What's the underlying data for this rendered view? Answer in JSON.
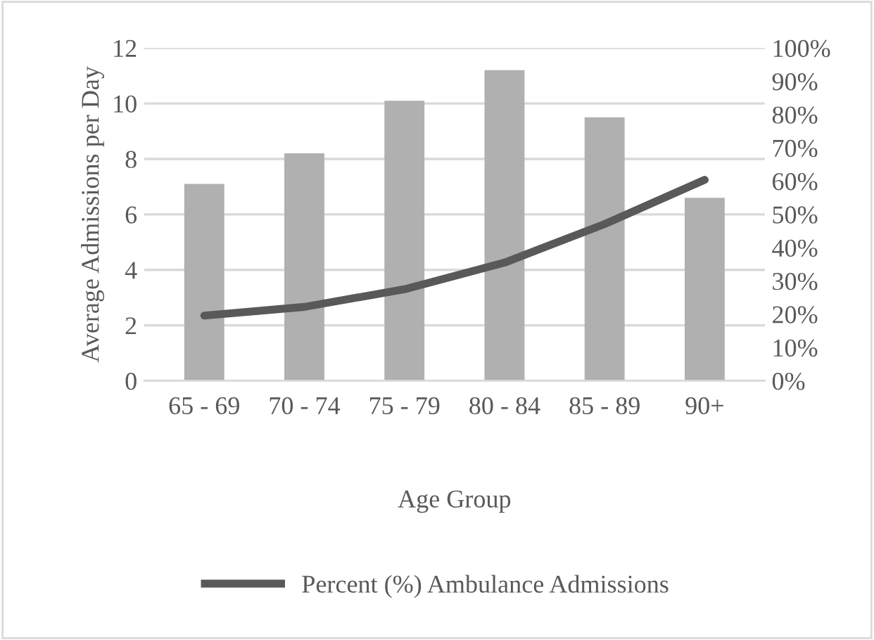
{
  "chart_data": {
    "type": "bar",
    "xlabel": "Age Group",
    "ylabel": "Average Admissions per Day",
    "categories": [
      "65 - 69",
      "70 - 74",
      "75 - 79",
      "80 - 84",
      "85 - 89",
      "90+"
    ],
    "series": [
      {
        "color": "#b0b0b0",
        "values": [
          7.1,
          8.2,
          10.1,
          11.2,
          9.5,
          6.6
        ]
      },
      {
        "type": "line",
        "name": "Percent (%) Ambulance Admissions",
        "color": "#595959",
        "axis": "y2",
        "values": [
          19.6,
          22.2,
          27.5,
          35.5,
          47.1,
          60.4
        ]
      }
    ],
    "ylim": [
      0,
      12
    ],
    "yticks": [
      0,
      2,
      4,
      6,
      8,
      10,
      12
    ],
    "y2lim": [
      0,
      100
    ],
    "y2ticks": [
      {
        "value": 0,
        "label": "0%"
      },
      {
        "value": 10,
        "label": "10%"
      },
      {
        "value": 20,
        "label": "20%"
      },
      {
        "value": 30,
        "label": "30%"
      },
      {
        "value": 40,
        "label": "40%"
      },
      {
        "value": 50,
        "label": "50%"
      },
      {
        "value": 60,
        "label": "60%"
      },
      {
        "value": 70,
        "label": "70%"
      },
      {
        "value": 80,
        "label": "80%"
      },
      {
        "value": 90,
        "label": "90%"
      },
      {
        "value": 100,
        "label": "100%"
      }
    ],
    "grid": "y",
    "legend": "bottom",
    "marker": "none",
    "line_style": "solid"
  }
}
